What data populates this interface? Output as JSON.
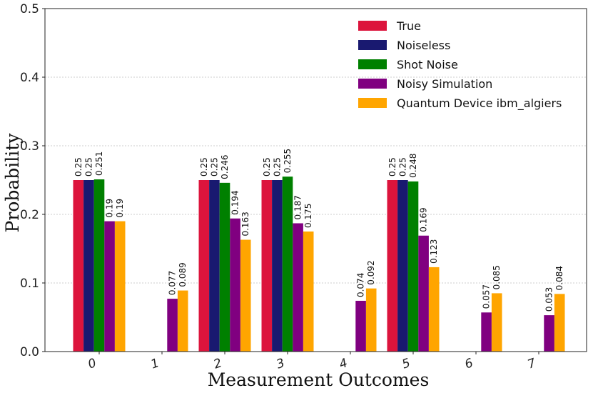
{
  "chart_data": {
    "type": "bar",
    "title": "",
    "xlabel": "Measurement Outcomes",
    "ylabel": "Probability",
    "ylim": [
      0,
      0.5
    ],
    "yticks": [
      "0.0",
      "0.1",
      "0.2",
      "0.3",
      "0.4",
      "0.5"
    ],
    "categories": [
      "0",
      "1",
      "2",
      "3",
      "4",
      "5",
      "6",
      "7"
    ],
    "grid": true,
    "legend_position": "top-right",
    "series": [
      {
        "name": "True",
        "color": "#DC143C",
        "values": [
          0.25,
          null,
          0.25,
          0.25,
          null,
          0.25,
          null,
          null
        ],
        "labels": [
          "0.25",
          "",
          "0.25",
          "0.25",
          "",
          "0.25",
          "",
          ""
        ]
      },
      {
        "name": "Noiseless",
        "color": "#191970",
        "values": [
          0.25,
          null,
          0.25,
          0.25,
          null,
          0.25,
          null,
          null
        ],
        "labels": [
          "0.25",
          "",
          "0.25",
          "0.25",
          "",
          "0.25",
          "",
          ""
        ]
      },
      {
        "name": "Shot Noise",
        "color": "#008000",
        "values": [
          0.251,
          null,
          0.246,
          0.255,
          null,
          0.248,
          null,
          null
        ],
        "labels": [
          "0.251",
          "",
          "0.246",
          "0.255",
          "",
          "0.248",
          "",
          ""
        ]
      },
      {
        "name": "Noisy Simulation",
        "color": "#800080",
        "values": [
          0.19,
          0.077,
          0.194,
          0.187,
          0.074,
          0.169,
          0.057,
          0.053
        ],
        "labels": [
          "0.19",
          "0.077",
          "0.194",
          "0.187",
          "0.074",
          "0.169",
          "0.057",
          "0.053"
        ]
      },
      {
        "name": "Quantum Device ibm_algiers",
        "color": "#FFA500",
        "values": [
          0.19,
          0.089,
          0.163,
          0.175,
          0.092,
          0.123,
          0.085,
          0.084
        ],
        "labels": [
          "0.19",
          "0.089",
          "0.163",
          "0.175",
          "0.092",
          "0.123",
          "0.085",
          "0.084"
        ]
      }
    ]
  }
}
